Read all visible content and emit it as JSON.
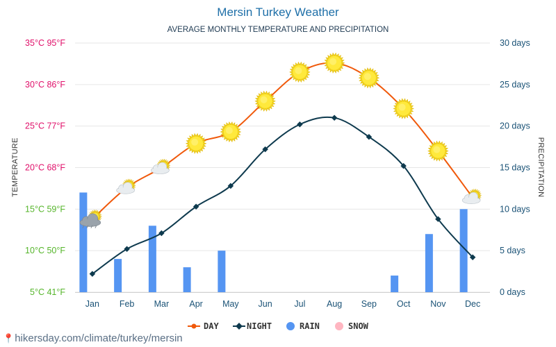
{
  "chart_data": {
    "type": "bar",
    "title": "Mersin Turkey Weather",
    "subtitle": "AVERAGE MONTHLY TEMPERATURE AND PRECIPITATION",
    "categories": [
      "Jan",
      "Feb",
      "Mar",
      "Apr",
      "May",
      "Jun",
      "Jul",
      "Aug",
      "Sep",
      "Oct",
      "Nov",
      "Dec"
    ],
    "series": [
      {
        "name": "DAY",
        "type": "line",
        "axis": "left",
        "color": "#f0590b",
        "values": [
          13.8,
          17.6,
          20.0,
          22.9,
          24.3,
          28.0,
          31.5,
          32.6,
          30.8,
          27.1,
          22.0,
          16.4
        ]
      },
      {
        "name": "NIGHT",
        "type": "line",
        "axis": "left",
        "color": "#0e3a4e",
        "values": [
          7.2,
          10.2,
          12.1,
          15.3,
          17.8,
          22.2,
          25.2,
          26.0,
          23.7,
          20.2,
          13.8,
          9.2
        ]
      },
      {
        "name": "RAIN",
        "type": "bar",
        "axis": "right",
        "color": "#5595f2",
        "values": [
          12,
          4,
          8,
          3,
          5,
          0,
          0,
          0,
          0,
          2,
          7,
          10
        ]
      },
      {
        "name": "SNOW",
        "type": "bar",
        "axis": "right",
        "color": "#ffb6c1",
        "values": [
          0,
          0,
          0,
          0,
          0,
          0,
          0,
          0,
          0,
          0,
          0,
          0
        ]
      }
    ],
    "ylabel": "TEMPERATURE",
    "ylabel_right": "PRECIPITATION",
    "ylim": [
      5,
      35
    ],
    "ylim_right": [
      0,
      30
    ],
    "yticks": [
      {
        "value": 35,
        "label": "35°C 95°F",
        "color": "#e0106a"
      },
      {
        "value": 30,
        "label": "30°C 86°F",
        "color": "#e0106a"
      },
      {
        "value": 25,
        "label": "25°C 77°F",
        "color": "#e0106a"
      },
      {
        "value": 20,
        "label": "20°C 68°F",
        "color": "#e0106a"
      },
      {
        "value": 15,
        "label": "15°C 59°F",
        "color": "#55b52a"
      },
      {
        "value": 10,
        "label": "10°C 50°F",
        "color": "#55b52a"
      },
      {
        "value": 5,
        "label": "5°C 41°F",
        "color": "#55b52a"
      }
    ],
    "yticks_right": [
      {
        "value": 30,
        "label": "30 days"
      },
      {
        "value": 25,
        "label": "25 days"
      },
      {
        "value": 20,
        "label": "20 days"
      },
      {
        "value": 15,
        "label": "15 days"
      },
      {
        "value": 10,
        "label": "10 days"
      },
      {
        "value": 5,
        "label": "5 days"
      },
      {
        "value": 0,
        "label": "0 days"
      }
    ],
    "day_icons": [
      "sun-cloud-rain",
      "sun-cloud",
      "sun-cloud",
      "sun",
      "sun",
      "sun",
      "sun",
      "sun",
      "sun",
      "sun",
      "sun",
      "sun-cloud"
    ],
    "grid": true,
    "legend_position": "bottom-center"
  },
  "colors": {
    "title": "#1e6fa8",
    "right_axis": "#1a5276",
    "gridline": "#e6e6e6"
  },
  "watermark": "hikersday.com/climate/turkey/mersin"
}
